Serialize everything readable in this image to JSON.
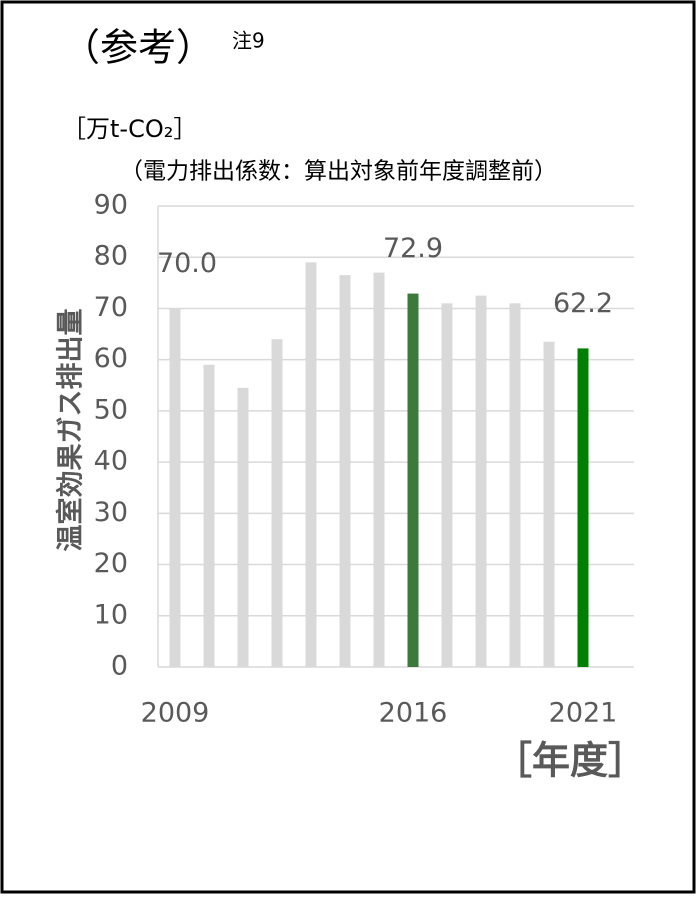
{
  "chart_data": {
    "type": "bar",
    "title": "（参考）",
    "note": "注9",
    "unit": "［万t-CO₂］",
    "subtitle": "（電力排出係数：算出対象前年度調整前）",
    "y_label": "温室効果ガス排出量",
    "x_label": "［年度］",
    "categories": [
      "2009",
      null,
      null,
      null,
      null,
      null,
      null,
      "2016",
      null,
      null,
      null,
      null,
      "2021"
    ],
    "values": [
      70.0,
      59,
      54.5,
      64,
      79,
      76.5,
      77,
      72.9,
      71,
      72.5,
      71,
      63.5,
      62.2
    ],
    "value_labels": [
      "70.0",
      null,
      null,
      null,
      null,
      null,
      null,
      "72.9",
      null,
      null,
      null,
      null,
      "62.2"
    ],
    "colors": [
      "#d9d9d9",
      "#d9d9d9",
      "#d9d9d9",
      "#d9d9d9",
      "#d9d9d9",
      "#d9d9d9",
      "#d9d9d9",
      "#3b7a3b",
      "#d9d9d9",
      "#d9d9d9",
      "#d9d9d9",
      "#d9d9d9",
      "#008000"
    ],
    "ylim": [
      0,
      90
    ],
    "yticks": [
      0,
      10,
      20,
      30,
      40,
      50,
      60,
      70,
      80,
      90
    ],
    "grid": true
  }
}
